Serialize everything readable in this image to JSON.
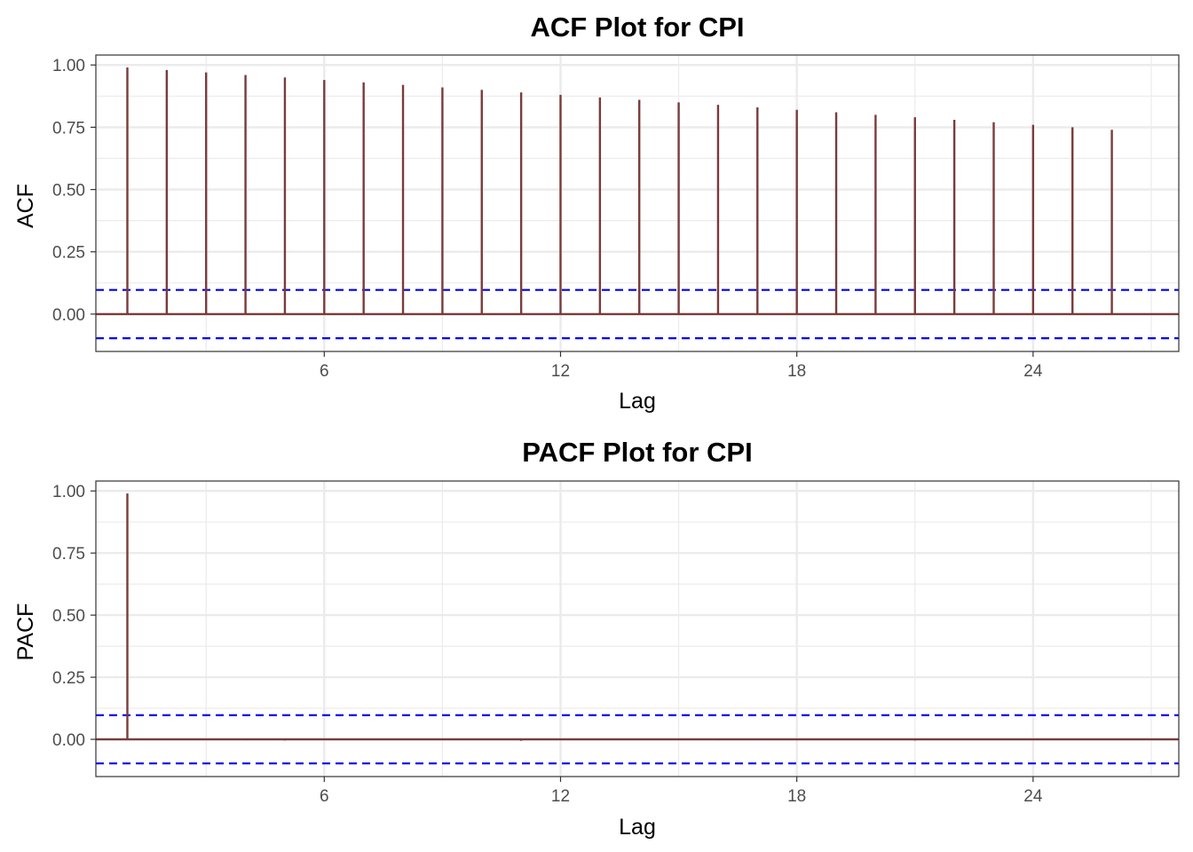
{
  "chart_data": [
    {
      "type": "bar",
      "subtype": "acf-stem",
      "title": "ACF Plot for CPI",
      "xlabel": "Lag",
      "ylabel": "ACF",
      "x": [
        1,
        2,
        3,
        4,
        5,
        6,
        7,
        8,
        9,
        10,
        11,
        12,
        13,
        14,
        15,
        16,
        17,
        18,
        19,
        20,
        21,
        22,
        23,
        24,
        25,
        26
      ],
      "values": [
        0.99,
        0.98,
        0.97,
        0.96,
        0.95,
        0.94,
        0.93,
        0.92,
        0.91,
        0.9,
        0.89,
        0.88,
        0.87,
        0.86,
        0.85,
        0.84,
        0.83,
        0.82,
        0.81,
        0.8,
        0.79,
        0.78,
        0.77,
        0.76,
        0.75,
        0.74
      ],
      "confidence_bound": 0.097,
      "xlim": [
        0.2,
        27.7
      ],
      "ylim": [
        -0.15,
        1.04
      ],
      "x_ticks": [
        6,
        12,
        18,
        24
      ],
      "y_ticks": [
        0,
        0.25,
        0.5,
        0.75,
        1.0
      ],
      "x_tick_labels": [
        "6",
        "12",
        "18",
        "24"
      ],
      "y_tick_labels": [
        "0.00",
        "0.25",
        "0.50",
        "0.75",
        "1.00"
      ],
      "grid": true,
      "legend": "none",
      "colors": {
        "stem": "#7a3b3b",
        "bound": "#0000ee",
        "grid": "#ebebeb",
        "border": "#333333"
      }
    },
    {
      "type": "bar",
      "subtype": "pacf-stem",
      "title": "PACF Plot for CPI",
      "xlabel": "Lag",
      "ylabel": "PACF",
      "x": [
        1,
        2,
        3,
        4,
        5,
        6,
        7,
        8,
        9,
        10,
        11,
        12,
        13,
        14,
        15,
        16,
        17,
        18,
        19,
        20,
        21,
        22,
        23,
        24,
        25,
        26
      ],
      "values": [
        0.99,
        -0.002,
        -0.002,
        -0.004,
        -0.005,
        -0.002,
        0.001,
        -0.002,
        -0.003,
        -0.001,
        -0.006,
        -0.002,
        0.002,
        -0.001,
        -0.002,
        -0.004,
        -0.001,
        -0.002,
        0.001,
        -0.003,
        -0.005,
        -0.002,
        0.001,
        -0.002,
        -0.001,
        -0.002
      ],
      "confidence_bound": 0.097,
      "xlim": [
        0.2,
        27.7
      ],
      "ylim": [
        -0.15,
        1.04
      ],
      "x_ticks": [
        6,
        12,
        18,
        24
      ],
      "y_ticks": [
        0,
        0.25,
        0.5,
        0.75,
        1.0
      ],
      "x_tick_labels": [
        "6",
        "12",
        "18",
        "24"
      ],
      "y_tick_labels": [
        "0.00",
        "0.25",
        "0.50",
        "0.75",
        "1.00"
      ],
      "grid": true,
      "legend": "none",
      "colors": {
        "stem": "#7a3b3b",
        "bound": "#0000ee",
        "grid": "#ebebeb",
        "border": "#333333"
      }
    }
  ]
}
